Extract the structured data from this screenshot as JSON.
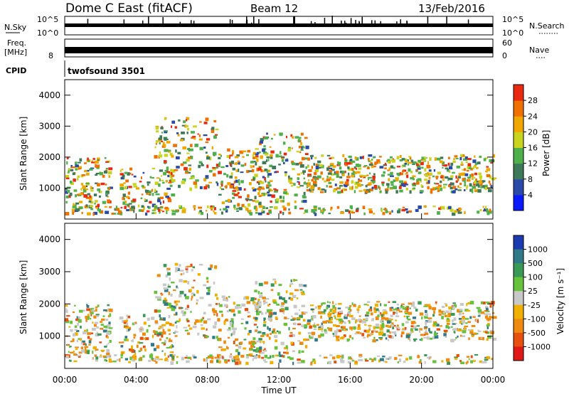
{
  "header": {
    "station": "Dome C East (fitACF)",
    "beam": "Beam 12",
    "date": "13/Feb/2016"
  },
  "panels": {
    "nsky": {
      "label": "N.Sky",
      "tick_top": "10^5",
      "tick_bottom": "10^0"
    },
    "nsearch": {
      "label": "N.Search",
      "tick_top": "10^5",
      "tick_bottom": "10^0"
    },
    "freq": {
      "label_line1": "Freq.",
      "label_line2": "[MHz]",
      "tick_top": "",
      "tick_bottom": "8"
    },
    "nave": {
      "label": "Nave",
      "tick_top": "60",
      "tick_bottom": "0"
    },
    "cpid": {
      "label": "CPID",
      "program": "twofsound 3501"
    }
  },
  "chart_data": [
    {
      "type": "heatmap",
      "name": "power",
      "ylabel": "Slant Range [km]",
      "yticks": [
        "1000",
        "2000",
        "3000",
        "4000"
      ],
      "colorbar_label": "Power [dB]",
      "colorbar_ticks": [
        "4",
        "8",
        "12",
        "16",
        "20",
        "24",
        "28"
      ],
      "colorbar_colors": [
        "#0a1aff",
        "#2b4aa8",
        "#3e7a5a",
        "#4db04a",
        "#c8d41e",
        "#f0a800",
        "#f07000",
        "#ea2a10"
      ]
    },
    {
      "type": "heatmap",
      "name": "velocity",
      "ylabel": "Slant Range [km]",
      "yticks": [
        "1000",
        "2000",
        "3000",
        "4000"
      ],
      "colorbar_label": "Velocity [m s⁻¹]",
      "colorbar_ticks": [
        "1000",
        "500",
        "100",
        "25",
        "-25",
        "-100",
        "-500",
        "-1000"
      ],
      "colorbar_colors": [
        "#1c3bb0",
        "#2f7a86",
        "#3a9a55",
        "#66c23a",
        "#c8c8c8",
        "#f0b000",
        "#ee8a10",
        "#e85010",
        "#e01818"
      ]
    }
  ],
  "xaxis": {
    "label": "Time UT",
    "ticks": [
      "00:00",
      "04:00",
      "08:00",
      "12:00",
      "16:00",
      "20:00",
      "00:00"
    ]
  }
}
